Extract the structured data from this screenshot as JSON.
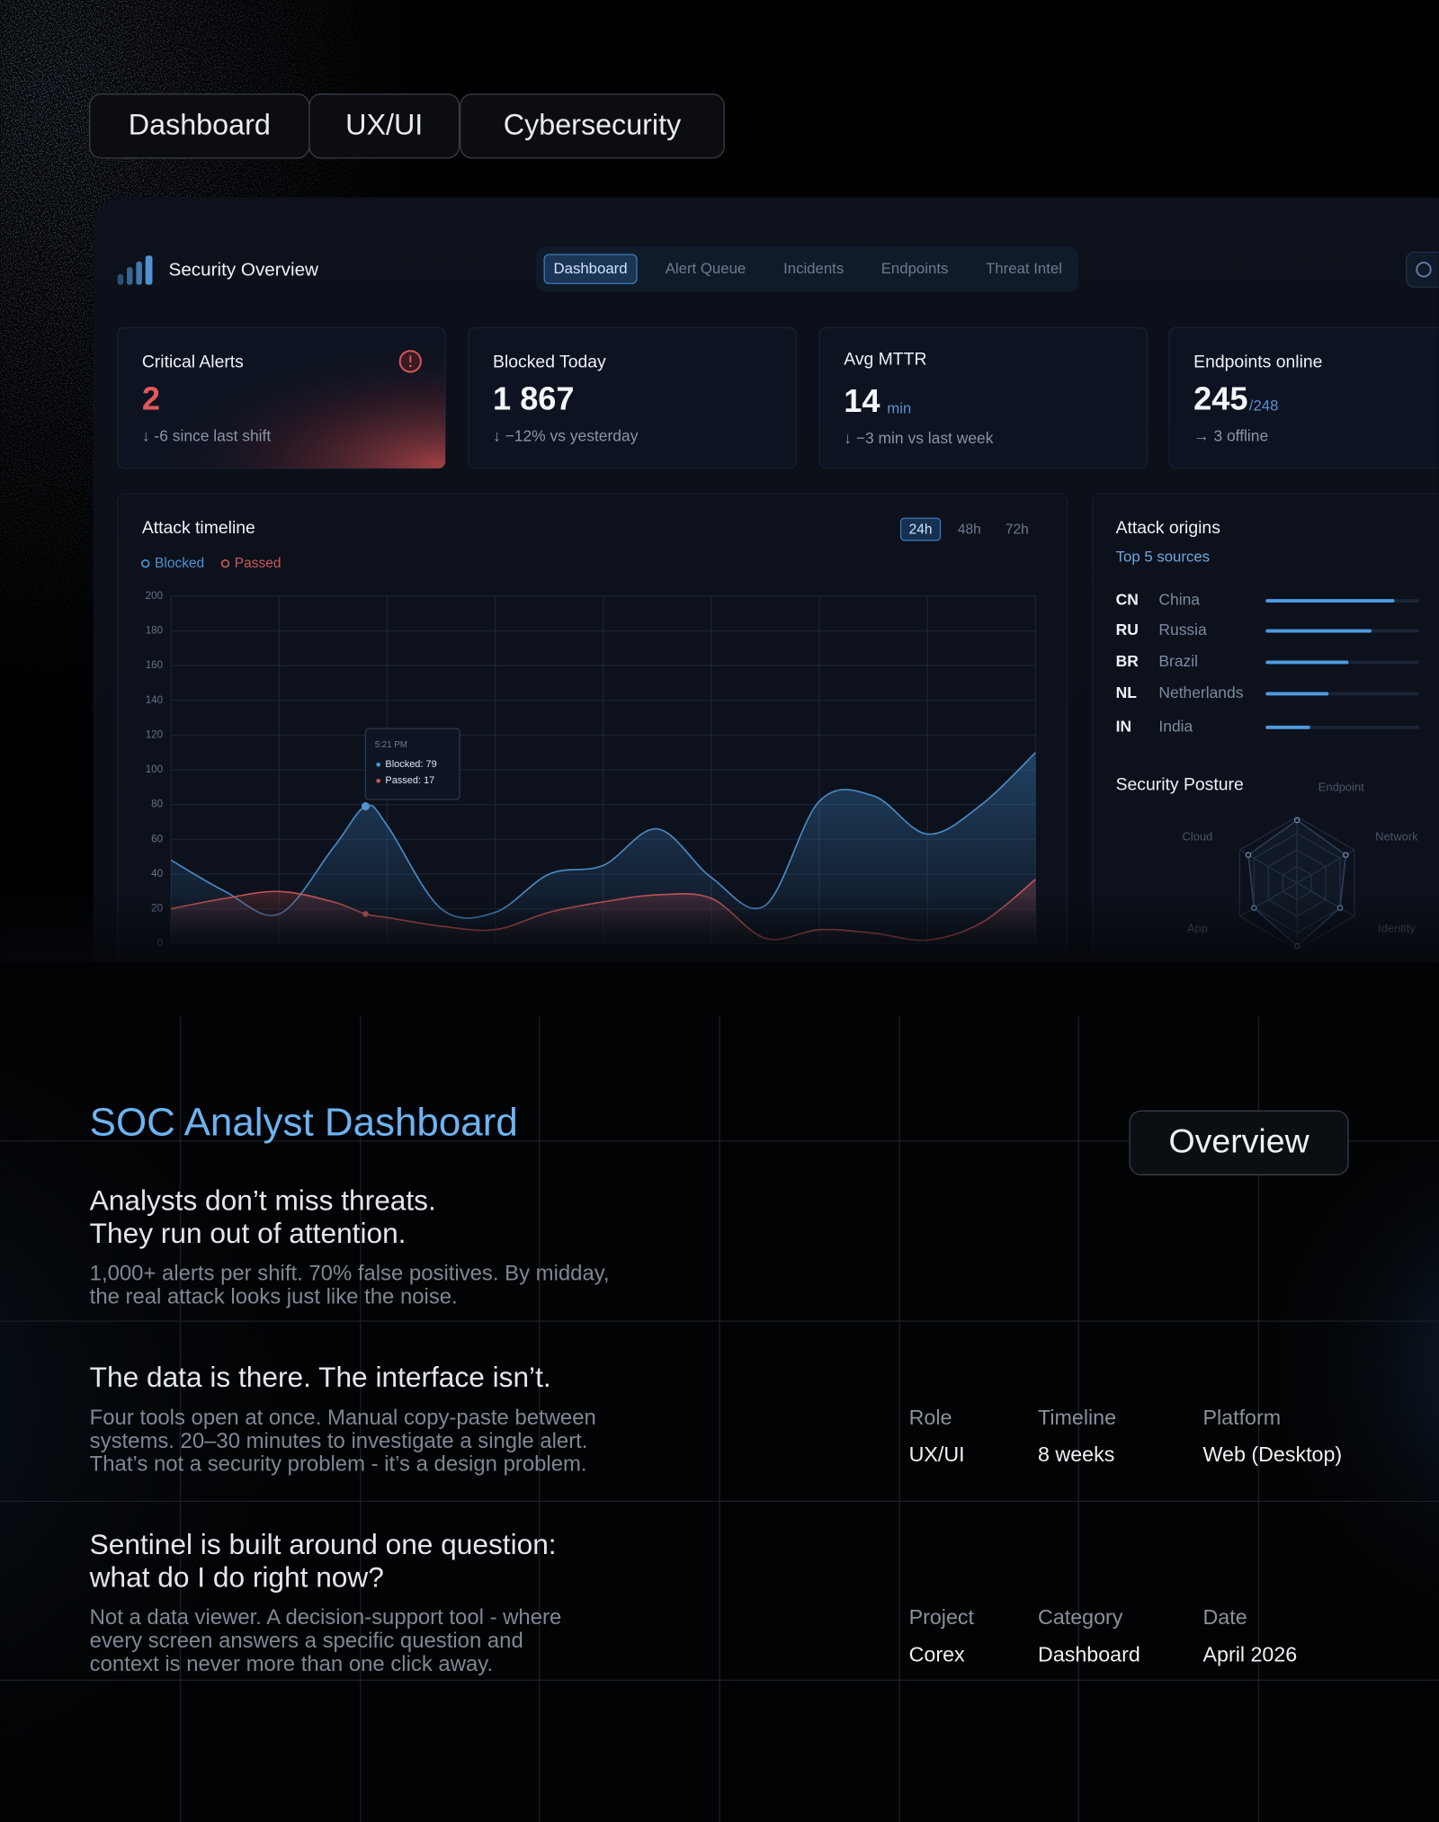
{
  "tags": [
    "Dashboard",
    "UX/UI",
    "Cybersecurity"
  ],
  "dashboard": {
    "brand": "Security Overview",
    "nav": {
      "tabs": [
        "Dashboard",
        "Alert Queue",
        "Incidents",
        "Endpoints",
        "Threat Intel"
      ],
      "active": 0
    },
    "kpis": [
      {
        "label": "Critical Alerts",
        "value": "2",
        "note": "↓ -6 since last shift"
      },
      {
        "label": "Blocked Today",
        "value": "1 867",
        "note": "↓ −12% vs yesterday"
      },
      {
        "label": "Avg MTTR",
        "value": "14",
        "unit": "min",
        "note": "↓ −3 min vs last week"
      },
      {
        "label": "Endpoints online",
        "value": "245",
        "unit": "/248",
        "note": "→ 3 offline"
      }
    ],
    "attack_timeline": {
      "type": "line",
      "title": "Attack timeline",
      "ranges": [
        "24h",
        "48h",
        "72h"
      ],
      "active_range": 0,
      "x": [
        0,
        0.5,
        1,
        1.5,
        1.8,
        2,
        2.5,
        3,
        3.5,
        4,
        4.5,
        5,
        5.5,
        6,
        6.5,
        7,
        7.5,
        8
      ],
      "xlim": [
        0,
        8
      ],
      "xticks": [
        0,
        1,
        2,
        3,
        4,
        5,
        6,
        7,
        8
      ],
      "ylim": [
        0,
        200
      ],
      "yticks": [
        0,
        20,
        40,
        60,
        80,
        100,
        120,
        140,
        160,
        180,
        200
      ],
      "grid": true,
      "series": [
        {
          "name": "Blocked",
          "color": "#4f93d2",
          "values": [
            48,
            30,
            17,
            55,
            79,
            68,
            20,
            18,
            40,
            45,
            66,
            38,
            22,
            82,
            85,
            63,
            80,
            110
          ]
        },
        {
          "name": "Passed",
          "color": "#c9585a",
          "values": [
            20,
            26,
            30,
            24,
            17,
            15,
            10,
            8,
            18,
            24,
            28,
            26,
            3,
            8,
            6,
            2,
            12,
            37
          ]
        }
      ],
      "tooltip": {
        "time": "5:21 PM",
        "lines": [
          "Blocked: 79",
          "Passed: 17"
        ],
        "index": 4
      }
    },
    "attack_origins": {
      "title": "Attack origins",
      "subtitle": "Top 5 sources",
      "xlim": [
        0,
        100
      ],
      "color": "#4d9be0",
      "rows": [
        {
          "code": "CN",
          "name": "China",
          "value": 84
        },
        {
          "code": "RU",
          "name": "Russia",
          "value": 69
        },
        {
          "code": "BR",
          "name": "Brazil",
          "value": 54
        },
        {
          "code": "NL",
          "name": "Netherlands",
          "value": 41
        },
        {
          "code": "IN",
          "name": "India",
          "value": 29
        }
      ]
    },
    "security_posture": {
      "type": "radar",
      "title": "Security Posture",
      "axes": [
        "Endpoint",
        "Network",
        "Identity",
        null,
        "App",
        "Cloud"
      ],
      "values": [
        95,
        85,
        75,
        95,
        75,
        85
      ],
      "rlim": [
        0,
        100
      ],
      "rticks": [
        25,
        50,
        75,
        100
      ]
    }
  },
  "case_study": {
    "title": "SOC Analyst Dashboard",
    "button": "Overview",
    "sections": [
      {
        "heading": [
          "Analysts don’t miss threats.",
          "They run out of attention."
        ],
        "body": [
          "1,000+ alerts per shift. 70% false positives. By midday,",
          "the real attack looks just like the noise."
        ]
      },
      {
        "heading": [
          "The data is there. The interface isn’t."
        ],
        "body": [
          "Four tools open at once. Manual copy-paste between",
          "systems. 20–30 minutes to investigate a single alert.",
          "That’s not a security problem - it’s a design problem."
        ]
      },
      {
        "heading": [
          "Sentinel is built around one question:",
          "what do I do right now?"
        ],
        "body": [
          "Not a data viewer. A decision-support tool - where",
          "every screen answers a specific question and",
          "context is never more than one click away."
        ]
      }
    ],
    "meta": [
      [
        {
          "label": "Role",
          "value": "UX/UI"
        },
        {
          "label": "Timeline",
          "value": "8 weeks"
        },
        {
          "label": "Platform",
          "value": "Web (Desktop)"
        }
      ],
      [
        {
          "label": "Project",
          "value": "Corex"
        },
        {
          "label": "Category",
          "value": "Dashboard"
        },
        {
          "label": "Date",
          "value": "April 2026"
        }
      ]
    ]
  }
}
